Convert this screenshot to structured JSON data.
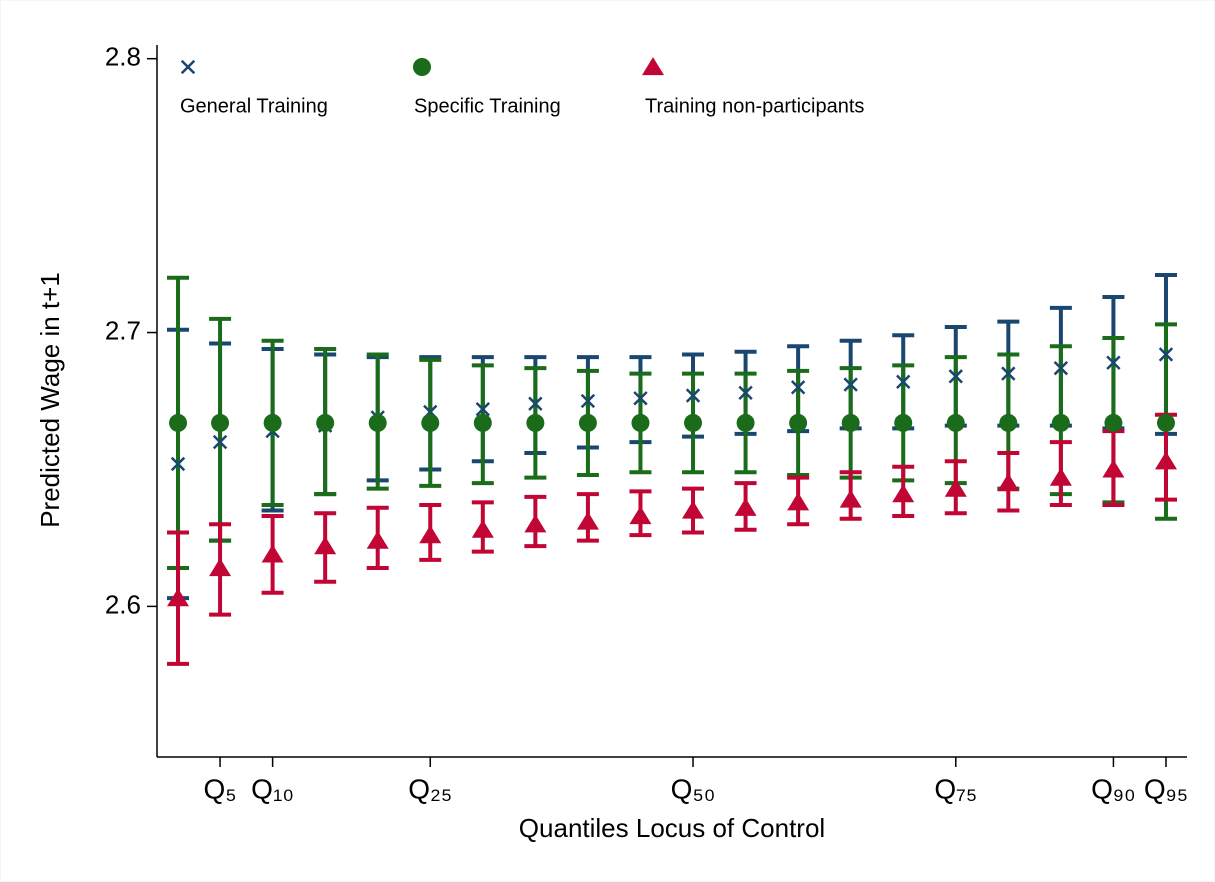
{
  "chart_data": {
    "type": "errorbar",
    "x_label": "Quantiles Locus of Control",
    "y_label": "Predicted Wage in t+1",
    "x": [
      1,
      5,
      10,
      15,
      20,
      25,
      30,
      35,
      40,
      45,
      50,
      55,
      60,
      65,
      70,
      75,
      80,
      85,
      90,
      95
    ],
    "xlim": [
      -1,
      97
    ],
    "xticks": [
      {
        "value": 5,
        "label": "Q₅"
      },
      {
        "value": 10,
        "label": "Q₁₀"
      },
      {
        "value": 25,
        "label": "Q₂₅"
      },
      {
        "value": 50,
        "label": "Q₅₀"
      },
      {
        "value": 75,
        "label": "Q₇₅"
      },
      {
        "value": 90,
        "label": "Q₉₀"
      },
      {
        "value": 95,
        "label": "Q₉₅"
      }
    ],
    "ylim": [
      2.545,
      2.805
    ],
    "yticks": [
      2.6,
      2.7,
      2.8
    ],
    "grid": false,
    "legend": "top",
    "series": [
      {
        "name": "General Training",
        "color": "#1a476f",
        "marker": "cross",
        "values": [
          2.652,
          2.66,
          2.664,
          2.666,
          2.669,
          2.671,
          2.672,
          2.674,
          2.675,
          2.676,
          2.677,
          2.678,
          2.68,
          2.681,
          2.682,
          2.684,
          2.685,
          2.687,
          2.689,
          2.692
        ],
        "lower": [
          2.603,
          2.624,
          2.635,
          2.641,
          2.646,
          2.65,
          2.653,
          2.656,
          2.658,
          2.66,
          2.662,
          2.663,
          2.664,
          2.665,
          2.665,
          2.666,
          2.666,
          2.666,
          2.665,
          2.663
        ],
        "upper": [
          2.701,
          2.696,
          2.694,
          2.692,
          2.691,
          2.691,
          2.691,
          2.691,
          2.691,
          2.691,
          2.692,
          2.693,
          2.695,
          2.697,
          2.699,
          2.702,
          2.704,
          2.709,
          2.713,
          2.721
        ]
      },
      {
        "name": "Specific Training",
        "color": "#1a6b1a",
        "marker": "circle",
        "values": [
          2.667,
          2.667,
          2.667,
          2.667,
          2.667,
          2.667,
          2.667,
          2.667,
          2.667,
          2.667,
          2.667,
          2.667,
          2.667,
          2.667,
          2.667,
          2.667,
          2.667,
          2.667,
          2.667,
          2.667
        ],
        "lower": [
          2.614,
          2.624,
          2.637,
          2.641,
          2.643,
          2.644,
          2.645,
          2.647,
          2.648,
          2.649,
          2.649,
          2.649,
          2.648,
          2.647,
          2.646,
          2.645,
          2.643,
          2.641,
          2.638,
          2.632
        ],
        "upper": [
          2.72,
          2.705,
          2.697,
          2.694,
          2.692,
          2.69,
          2.688,
          2.687,
          2.686,
          2.685,
          2.685,
          2.685,
          2.686,
          2.687,
          2.688,
          2.691,
          2.692,
          2.695,
          2.698,
          2.703
        ]
      },
      {
        "name": "Training non-participants",
        "color": "#c10534",
        "marker": "triangle",
        "values": [
          2.603,
          2.614,
          2.619,
          2.622,
          2.624,
          2.626,
          2.628,
          2.63,
          2.631,
          2.633,
          2.635,
          2.636,
          2.638,
          2.639,
          2.641,
          2.643,
          2.645,
          2.647,
          2.65,
          2.653
        ],
        "lower": [
          2.579,
          2.597,
          2.605,
          2.609,
          2.614,
          2.617,
          2.62,
          2.622,
          2.624,
          2.626,
          2.627,
          2.628,
          2.63,
          2.632,
          2.633,
          2.634,
          2.635,
          2.637,
          2.637,
          2.639
        ],
        "upper": [
          2.627,
          2.63,
          2.633,
          2.634,
          2.636,
          2.637,
          2.638,
          2.64,
          2.641,
          2.642,
          2.643,
          2.645,
          2.647,
          2.649,
          2.651,
          2.653,
          2.656,
          2.66,
          2.664,
          2.67
        ]
      }
    ]
  }
}
